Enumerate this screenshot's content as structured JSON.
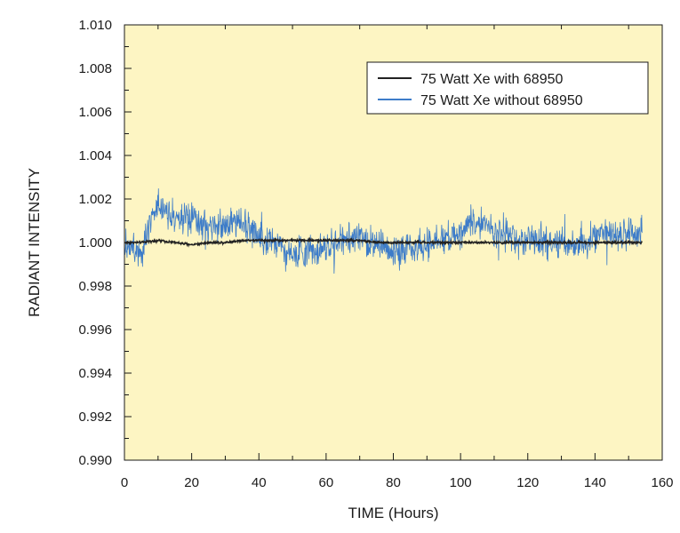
{
  "chart_data": {
    "type": "line",
    "title": "",
    "xlabel": "TIME (Hours)",
    "ylabel": "RADIANT INTENSITY",
    "xlim": [
      0,
      160
    ],
    "ylim": [
      0.99,
      1.01
    ],
    "x_ticks": [
      0,
      20,
      40,
      60,
      80,
      100,
      120,
      140,
      160
    ],
    "x_tick_labels": [
      "0",
      "20",
      "40",
      "60",
      "80",
      "100",
      "120",
      "140",
      "160"
    ],
    "x_minor_step": 10,
    "y_ticks": [
      0.99,
      0.992,
      0.994,
      0.996,
      0.998,
      1.0,
      1.002,
      1.004,
      1.006,
      1.008,
      1.01
    ],
    "y_tick_labels": [
      "0.990",
      "0.992",
      "0.994",
      "0.996",
      "0.998",
      "1.000",
      "1.002",
      "1.004",
      "1.006",
      "1.008",
      "1.010"
    ],
    "y_minor_step": 0.001,
    "grid": false,
    "plot_background": "#FDF5C3",
    "legend_position": "top-right",
    "series": [
      {
        "name": "75 Watt Xe with 68950",
        "color": "#222222",
        "x": [
          0,
          5,
          10,
          15,
          20,
          25,
          30,
          35,
          40,
          45,
          50,
          55,
          60,
          65,
          70,
          75,
          80,
          85,
          90,
          95,
          100,
          105,
          110,
          115,
          120,
          125,
          130,
          135,
          140,
          145,
          150,
          154
        ],
        "values": [
          1.0,
          1.0,
          1.0001,
          1.0,
          0.9999,
          1.0,
          1.0,
          1.0001,
          1.0001,
          1.0001,
          1.0001,
          1.0001,
          1.0001,
          1.0001,
          1.0001,
          1.0,
          1.0,
          1.0,
          1.0,
          1.0,
          1.0,
          1.0,
          1.0,
          1.0,
          1.0,
          1.0,
          1.0,
          1.0,
          1.0,
          1.0,
          1.0,
          1.0
        ],
        "noise_amplitude": 8e-05
      },
      {
        "name": "75 Watt Xe without 68950",
        "color": "#3D7CC9",
        "x": [
          0,
          5,
          8,
          10,
          15,
          20,
          25,
          30,
          35,
          40,
          45,
          50,
          55,
          60,
          65,
          70,
          75,
          80,
          85,
          90,
          95,
          100,
          103,
          105,
          110,
          115,
          120,
          125,
          130,
          135,
          140,
          145,
          150,
          154
        ],
        "values": [
          1.0,
          0.9996,
          1.0012,
          1.0018,
          1.0012,
          1.001,
          1.0006,
          1.0008,
          1.001,
          1.0003,
          1.0001,
          0.9994,
          0.9996,
          0.9998,
          1.0,
          1.0002,
          0.9999,
          0.9996,
          0.9998,
          0.9998,
          1.0002,
          1.0004,
          1.001,
          1.0008,
          1.0006,
          1.0002,
          1.0001,
          1.0,
          1.0,
          0.9999,
          1.0002,
          1.0004,
          1.0004,
          1.0006
        ],
        "noise_amplitude": 0.0011
      }
    ]
  }
}
